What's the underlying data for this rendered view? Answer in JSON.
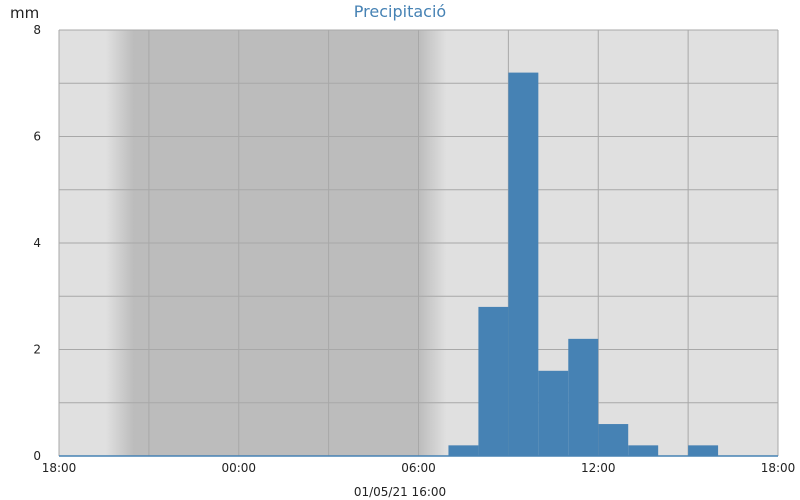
{
  "chart_data": {
    "type": "bar",
    "title": "Precipitació",
    "ylabel": "mm",
    "xlabel": "",
    "footer": "01/05/21 16:00",
    "ylim": [
      0,
      8
    ],
    "xlim_hours": [
      18,
      42
    ],
    "y_ticks": [
      0,
      2,
      4,
      6,
      8
    ],
    "x_ticks": [
      {
        "hour": 18,
        "label": "18:00"
      },
      {
        "hour": 24,
        "label": "00:00"
      },
      {
        "hour": 30,
        "label": "06:00"
      },
      {
        "hour": 36,
        "label": "12:00"
      },
      {
        "hour": 42,
        "label": "18:00"
      }
    ],
    "night_shading": {
      "start_hour": 20.5,
      "end_hour": 30.0
    },
    "bar_width_hours": 1,
    "bars": [
      {
        "start_hour": 31,
        "value": 0.2
      },
      {
        "start_hour": 32,
        "value": 2.8
      },
      {
        "start_hour": 33,
        "value": 7.2
      },
      {
        "start_hour": 34,
        "value": 1.6
      },
      {
        "start_hour": 35,
        "value": 2.2
      },
      {
        "start_hour": 36,
        "value": 0.6
      },
      {
        "start_hour": 37,
        "value": 0.2
      },
      {
        "start_hour": 39,
        "value": 0.2
      }
    ],
    "grid": true,
    "colors": {
      "bar": "#4682b4",
      "plot_bg": "#e0e0e0",
      "night": "#bcbcbc",
      "grid": "#a8a8a8",
      "title": "#4682b4"
    }
  }
}
